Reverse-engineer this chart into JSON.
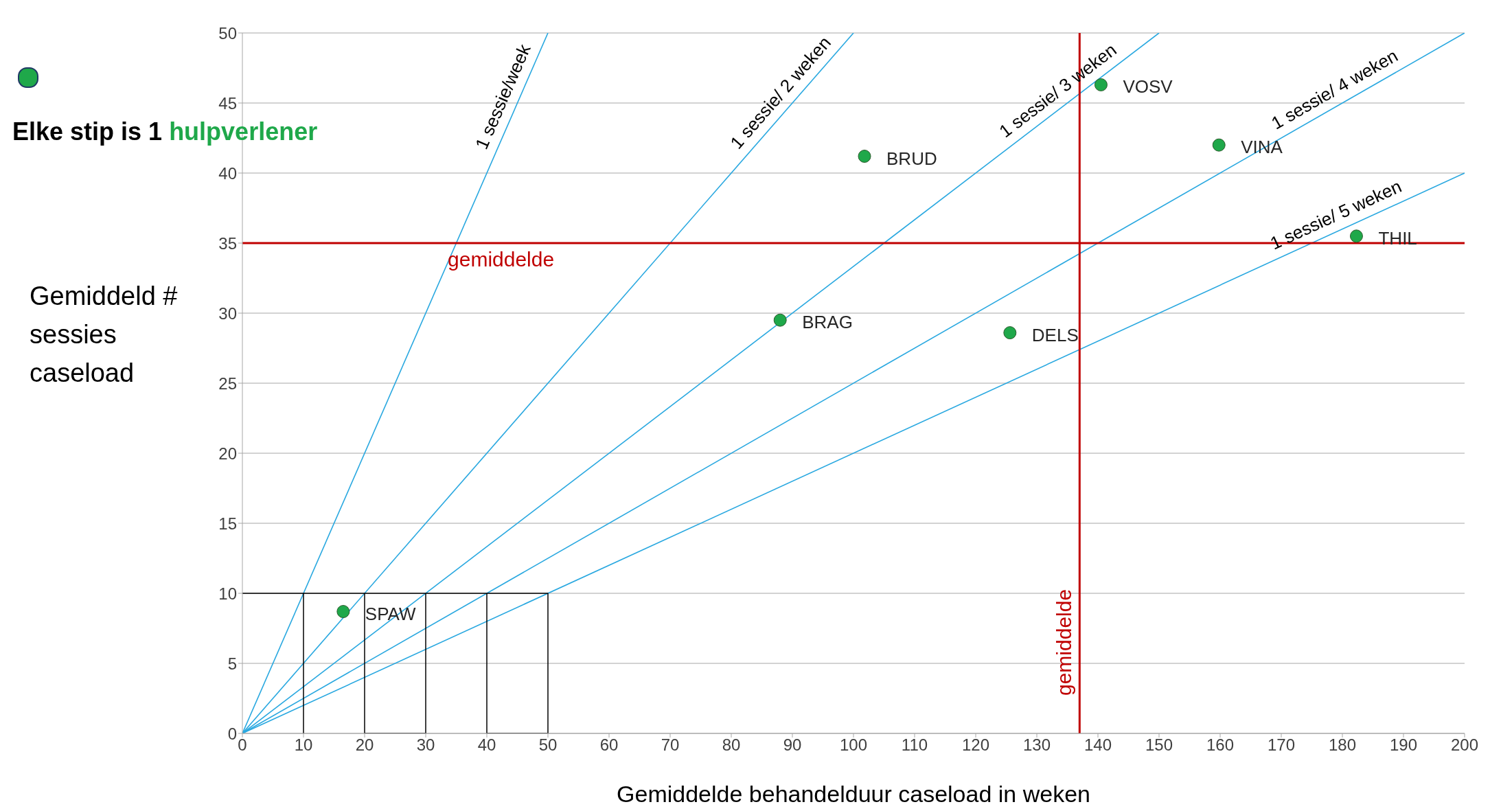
{
  "chart_data": {
    "type": "scatter",
    "xlabel": "Gemiddelde behandelduur caseload in weken",
    "ylabel": "Gemiddeld # sessies caseload",
    "xlim": [
      0,
      200
    ],
    "ylim": [
      0,
      50
    ],
    "xticks": [
      0,
      10,
      20,
      30,
      40,
      50,
      60,
      70,
      80,
      90,
      100,
      110,
      120,
      130,
      140,
      150,
      160,
      170,
      180,
      190,
      200
    ],
    "yticks": [
      0,
      5,
      10,
      15,
      20,
      25,
      30,
      35,
      40,
      45,
      50
    ],
    "grid": "y",
    "legend": "left",
    "series": [
      {
        "name": "Elke stip is 1 hulpverlener",
        "marker": "circle",
        "color": "#1fa84a",
        "x": [
          16.5,
          88,
          101.8,
          125.6,
          140.5,
          159.8,
          182.3
        ],
        "values": [
          8.7,
          29.5,
          41.2,
          28.6,
          46.3,
          42.0,
          35.5
        ]
      },
      {
        "name": "1 sessie/week",
        "type": "line",
        "color": "#29a8e0",
        "x": [
          0,
          50
        ],
        "values": [
          0,
          50
        ]
      },
      {
        "name": "1 sessie/ 2 weken",
        "type": "line",
        "color": "#29a8e0",
        "x": [
          0,
          100
        ],
        "values": [
          0,
          50
        ]
      },
      {
        "name": "1 sessie/ 3 weken",
        "type": "line",
        "color": "#29a8e0",
        "x": [
          0,
          150
        ],
        "values": [
          0,
          50
        ]
      },
      {
        "name": "1 sessie/ 4 weken",
        "type": "line",
        "color": "#29a8e0",
        "x": [
          0,
          200
        ],
        "values": [
          0,
          50
        ]
      },
      {
        "name": "1 sessie/ 5 weken",
        "type": "line",
        "color": "#29a8e0",
        "x": [
          0,
          200
        ],
        "values": [
          0,
          40
        ]
      },
      {
        "type": "line",
        "color": "#000000",
        "x": [
          0,
          50,
          50,
          40,
          40,
          30,
          30,
          20,
          20,
          10,
          10
        ],
        "values": [
          10,
          10,
          0,
          0,
          10,
          10,
          0,
          0,
          10,
          10,
          0
        ]
      }
    ],
    "ref_lines": [
      {
        "axis": "y",
        "value": 35,
        "label": "gemiddelde",
        "color": "#c00000"
      },
      {
        "axis": "x",
        "value": 137,
        "label": "gemiddelde",
        "color": "#c00000"
      }
    ],
    "annotations": [
      {
        "text": "SPAW",
        "x": 16.5,
        "y": 8.7
      },
      {
        "text": "BRAG",
        "x": 88,
        "y": 29.5
      },
      {
        "text": "BRUD",
        "x": 101.8,
        "y": 41.2
      },
      {
        "text": "DELS",
        "x": 125.6,
        "y": 28.6
      },
      {
        "text": "VOSV",
        "x": 140.5,
        "y": 46.3
      },
      {
        "text": "VINA",
        "x": 159.8,
        "y": 42.0
      },
      {
        "text": "THIL",
        "x": 182.3,
        "y": 35.5
      }
    ]
  }
}
